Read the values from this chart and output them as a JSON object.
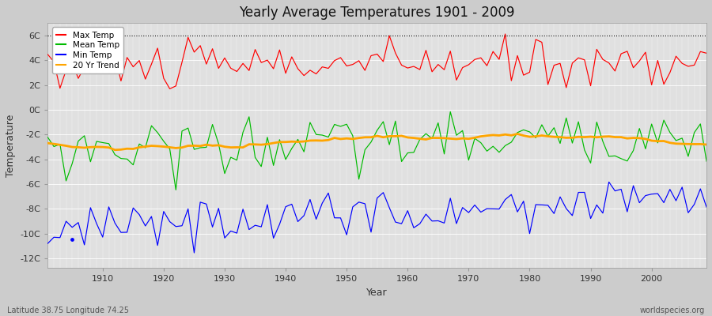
{
  "title": "Yearly Average Temperatures 1901 - 2009",
  "xlabel": "Year",
  "ylabel": "Temperature",
  "subtitle_left": "Latitude 38.75 Longitude 74.25",
  "subtitle_right": "worldspecies.org",
  "xlim": [
    1901,
    2009
  ],
  "ylim_bottom": -12.8,
  "ylim_top": 7.0,
  "yticks": [
    -12,
    -10,
    -8,
    -6,
    -4,
    -2,
    0,
    2,
    4,
    6
  ],
  "ytick_labels": [
    "-12C",
    "-10C",
    "-8C",
    "-6C",
    "-4C",
    "-2C",
    "0C",
    "2C",
    "4C",
    "6C"
  ],
  "xticks": [
    1910,
    1920,
    1930,
    1940,
    1950,
    1960,
    1970,
    1980,
    1990,
    2000
  ],
  "max_temp_color": "#ff0000",
  "mean_temp_color": "#00bb00",
  "min_temp_color": "#0000ff",
  "trend_color": "#ffa500",
  "fig_bg_color": "#cccccc",
  "plot_bg_color": "#e0e0e0",
  "legend_labels": [
    "Max Temp",
    "Mean Temp",
    "Min Temp",
    "20 Yr Trend"
  ],
  "dotted_line_y": 6,
  "linewidth": 0.85,
  "trend_linewidth": 2.0
}
